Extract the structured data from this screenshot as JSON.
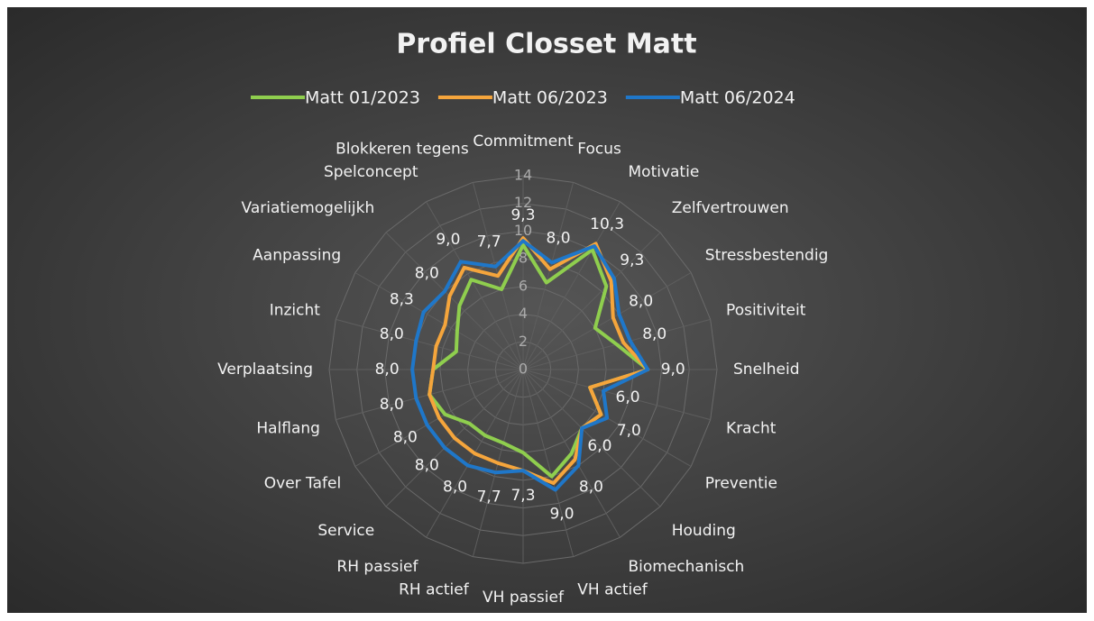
{
  "chart_data": {
    "type": "radar",
    "title": "Profiel Closset Matt",
    "categories": [
      "Commitment",
      "Focus",
      "Motivatie",
      "Zelfvertrouwen",
      "Stressbestendig",
      "Positiviteit",
      "Snelheid",
      "Kracht",
      "Preventie",
      "Houding",
      "Biomechanisch",
      "VH actief",
      "VH passief",
      "RH actief",
      "RH passief",
      "Service",
      "Over Tafel",
      "Halflang",
      "Verplaatsing",
      "Inzicht",
      "Aanpassing",
      "Variatiemogelijkh",
      "Spelconcept",
      "Blokkeren tegens"
    ],
    "series": [
      {
        "name": "Matt 01/2023",
        "color": "#8fce4e",
        "values": [
          9,
          6.5,
          10,
          8.5,
          6,
          7,
          9,
          5,
          6.5,
          6,
          7,
          8,
          6,
          5.5,
          5.5,
          5.5,
          6.5,
          7,
          6.5,
          5,
          5.5,
          6.5,
          7.5,
          6
        ]
      },
      {
        "name": "Matt 06/2023",
        "color": "#f5a53c",
        "values": [
          9.5,
          7.5,
          10.5,
          9,
          7.5,
          7.5,
          9,
          5,
          6.5,
          6,
          7.5,
          8.5,
          7.3,
          7,
          7,
          7,
          7,
          7,
          6.5,
          6.5,
          6.5,
          7.5,
          8.5,
          7
        ]
      },
      {
        "name": "Matt 06/2024",
        "color": "#1f77c9",
        "values": [
          9.3,
          8,
          10.3,
          9.3,
          8,
          8,
          9,
          6,
          7,
          6,
          8,
          9,
          7.3,
          7.7,
          8,
          8,
          8,
          8,
          8,
          8,
          8.3,
          8,
          9,
          7.7
        ],
        "value_labels": [
          "9,3",
          "8,0",
          "10,3",
          "9,3",
          "8,0",
          "8,0",
          "9,0",
          "6,0",
          "7,0",
          "6,0",
          "8,0",
          "9,0",
          "7,3",
          "7,7",
          "8,0",
          "8,0",
          "8,0",
          "8,0",
          "8,0",
          "8,0",
          "8,3",
          "8,0",
          "9,0",
          "7,7"
        ]
      }
    ],
    "rlim": [
      0,
      14
    ],
    "rticks": [
      0,
      2,
      4,
      6,
      8,
      10,
      12,
      14
    ],
    "grid": true,
    "legend": "top"
  }
}
